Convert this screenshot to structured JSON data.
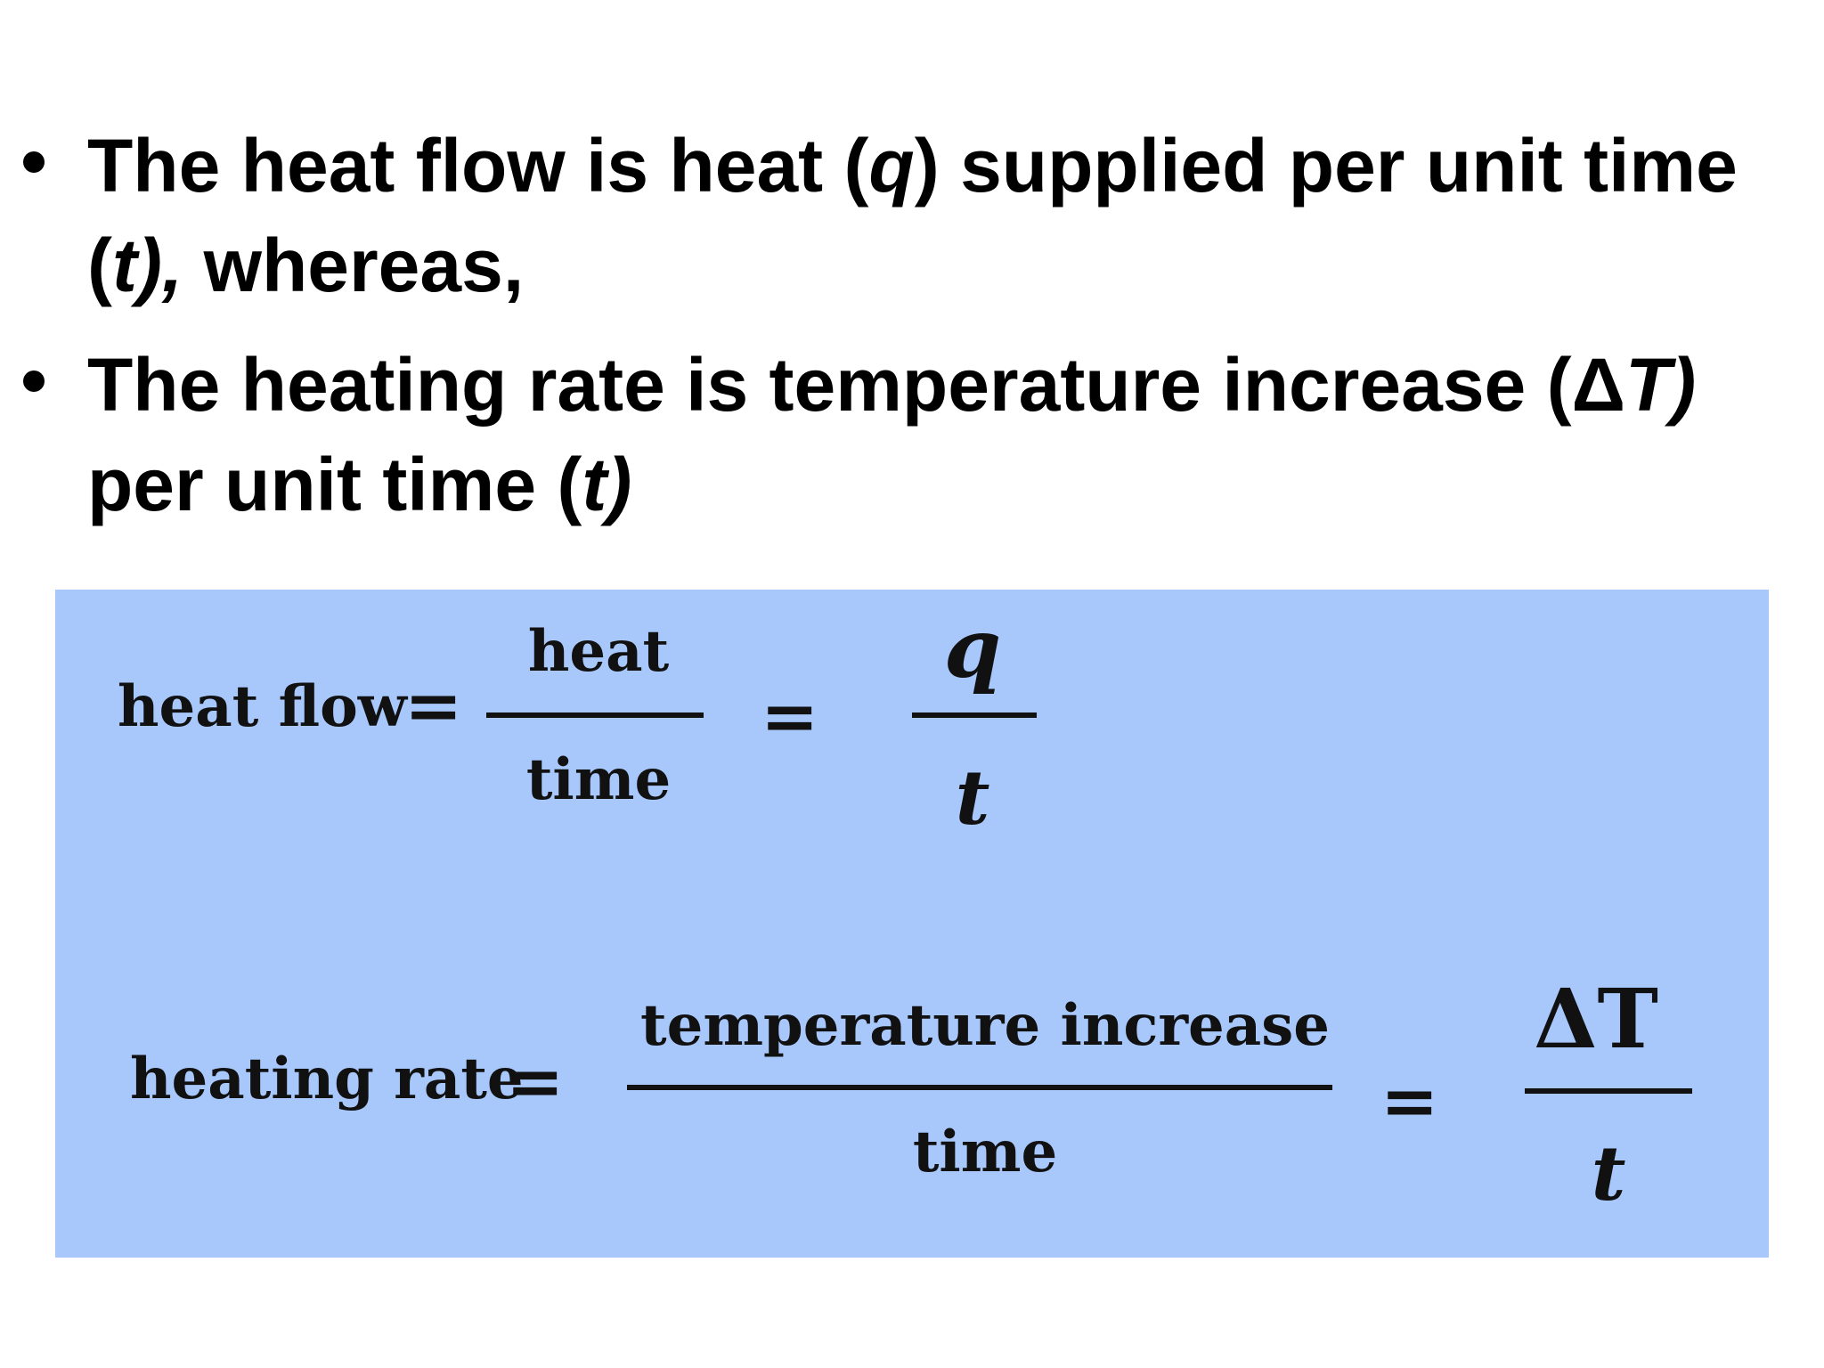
{
  "bullets": [
    {
      "before": "The heat flow is heat (",
      "var1": "q",
      "middle": ") supplied per unit time (",
      "var2": "t",
      "after_italic": "),",
      "after": " whereas,"
    },
    {
      "before": "The heating rate is temperature increase (Δ",
      "var1": "T",
      "middle_italic": ")",
      "after": " per unit time (",
      "var2": "t",
      "end_italic": ")"
    }
  ],
  "formula1": {
    "lhs": "heat flow",
    "equals": "=",
    "num1": "heat",
    "den1": "time",
    "equals2": "=",
    "num2": "q",
    "den2": "t"
  },
  "formula2": {
    "lhs": "heating rate",
    "equals": "=",
    "num1": "temperature increase",
    "den1": "time",
    "equals2": "=",
    "num2": "ΔT",
    "den2": "t"
  },
  "colors": {
    "formula_background": "#a8c8fc"
  }
}
